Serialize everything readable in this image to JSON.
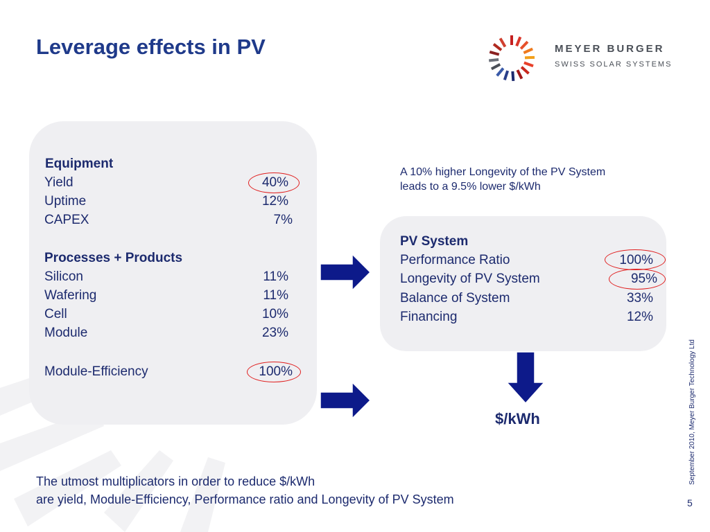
{
  "title": "Leverage effects in PV",
  "logo": {
    "name": "MEYER BURGER",
    "tagline": "SWISS SOLAR SYSTEMS"
  },
  "left_panel": {
    "equipment_heading": "Equipment",
    "equipment": [
      {
        "label": "Yield",
        "value": "40%"
      },
      {
        "label": "Uptime",
        "value": "12%"
      },
      {
        "label": "CAPEX",
        "value": "7%"
      }
    ],
    "processes_heading": "Processes + Products",
    "processes": [
      {
        "label": "Silicon",
        "value": "11%"
      },
      {
        "label": "Wafering",
        "value": "11%"
      },
      {
        "label": "Cell",
        "value": "10%"
      },
      {
        "label": "Module",
        "value": "23%"
      }
    ],
    "efficiency": {
      "label": "Module-Efficiency",
      "value": "100%"
    }
  },
  "note": {
    "line1": "A 10% higher Longevity of the PV System",
    "line2": "leads to a 9.5% lower $/kWh"
  },
  "right_panel": {
    "heading": "PV System",
    "items": [
      {
        "label": "Performance Ratio",
        "value": "100%"
      },
      {
        "label": "Longevity of PV System",
        "value": "95%"
      },
      {
        "label": "Balance of System",
        "value": "33%"
      },
      {
        "label": "Financing",
        "value": "12%"
      }
    ]
  },
  "result_label": "$/kWh",
  "footer": {
    "line1": "The utmost multiplicators in order to reduce $/kWh",
    "line2": "are yield, Module-Efficiency, Performance ratio and Longevity of PV System"
  },
  "side_text": "September 2010, Meyer Burger Technology Ltd",
  "page_number": "5",
  "colors": {
    "title": "#1f3a8a",
    "text": "#1c2a6e",
    "arrow": "#0d1a8a",
    "highlight": "#e02020",
    "panel": "#efeff2"
  }
}
